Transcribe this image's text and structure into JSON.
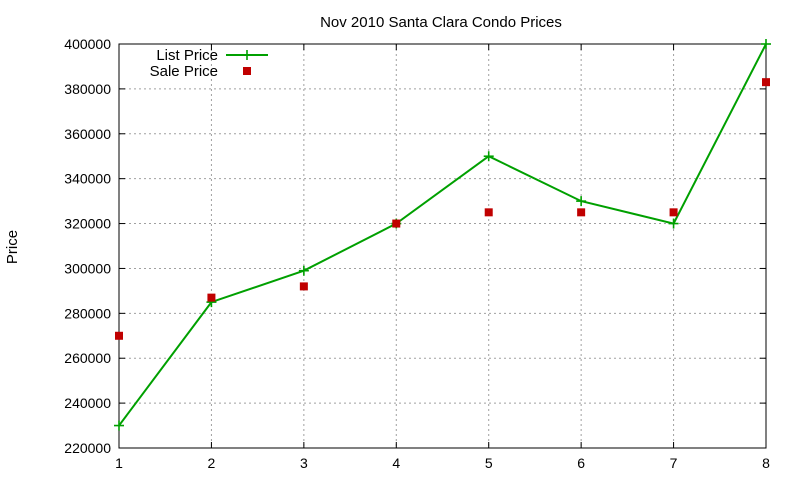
{
  "chart_data": {
    "type": "line",
    "title": "Nov 2010 Santa Clara Condo Prices",
    "xlabel": "",
    "ylabel": "Price",
    "x": [
      1,
      2,
      3,
      4,
      5,
      6,
      7,
      8
    ],
    "xlim": [
      1,
      8
    ],
    "ylim": [
      220000,
      400000
    ],
    "yticks": [
      220000,
      240000,
      260000,
      280000,
      300000,
      320000,
      340000,
      360000,
      380000,
      400000
    ],
    "xticks": [
      1,
      2,
      3,
      4,
      5,
      6,
      7,
      8
    ],
    "grid": true,
    "legend_position": "top-left",
    "series": [
      {
        "name": "List Price",
        "style": "linespoints",
        "marker": "plus",
        "color": "#00a000",
        "values": [
          230000,
          285000,
          299000,
          320000,
          350000,
          330000,
          320000,
          400000
        ]
      },
      {
        "name": "Sale Price",
        "style": "points",
        "marker": "square",
        "color": "#c00000",
        "values": [
          270000,
          287000,
          292000,
          320000,
          325000,
          325000,
          325000,
          383000
        ]
      }
    ]
  }
}
